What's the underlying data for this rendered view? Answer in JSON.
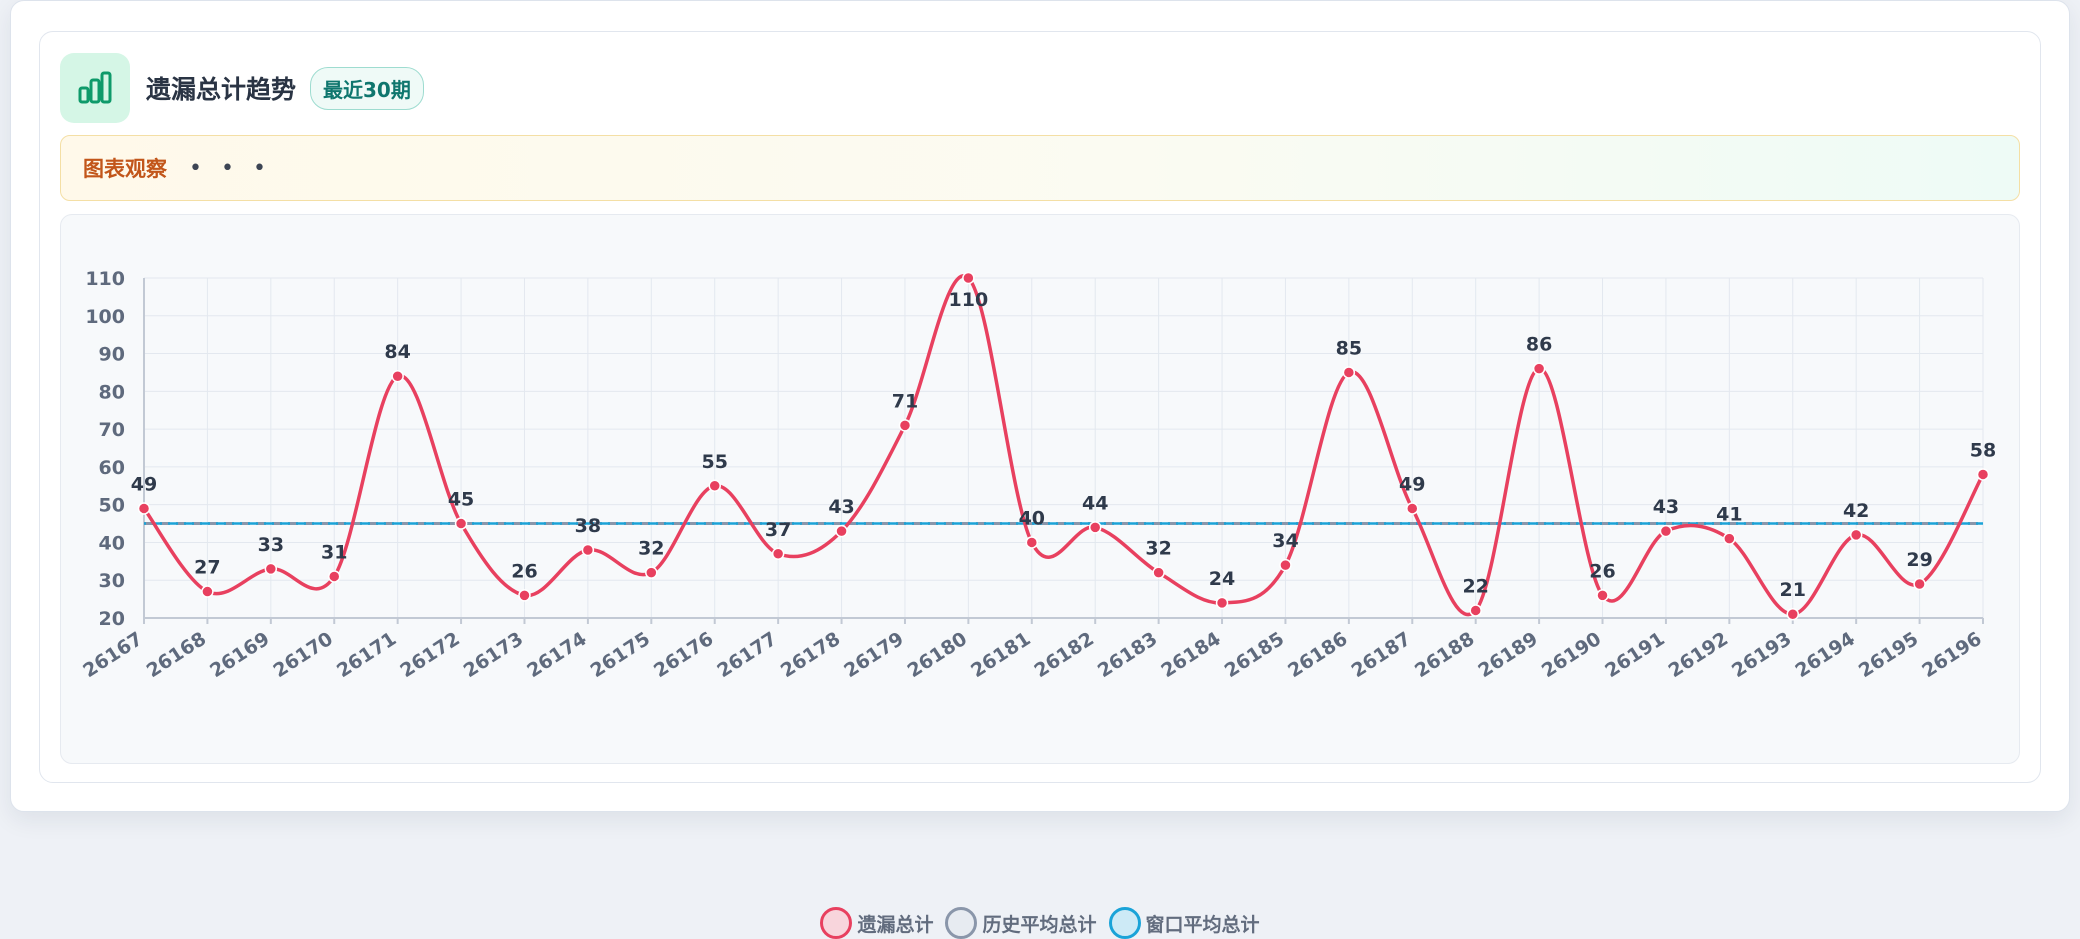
{
  "header": {
    "title": "遗漏总计趋势",
    "badge": "最近30期",
    "icon": "bar-chart-icon"
  },
  "notice": {
    "label": "图表观察",
    "more": "• • •"
  },
  "colors": {
    "series": "#e8405f",
    "avg": "#8a96aa",
    "window": "#1aa3d8"
  },
  "chart_data": {
    "type": "line",
    "x": [
      "26167",
      "26168",
      "26169",
      "26170",
      "26171",
      "26172",
      "26173",
      "26174",
      "26175",
      "26176",
      "26177",
      "26178",
      "26179",
      "26180",
      "26181",
      "26182",
      "26183",
      "26184",
      "26185",
      "26186",
      "26187",
      "26188",
      "26189",
      "26190",
      "26191",
      "26192",
      "26193",
      "26194",
      "26195",
      "26196"
    ],
    "series": [
      {
        "name": "遗漏总计",
        "values": [
          49,
          27,
          33,
          31,
          84,
          45,
          26,
          38,
          32,
          55,
          37,
          43,
          71,
          110,
          40,
          44,
          32,
          24,
          34,
          85,
          49,
          22,
          86,
          26,
          43,
          41,
          21,
          42,
          29,
          58
        ]
      },
      {
        "name": "历史平均总计",
        "values": [
          45,
          45,
          45,
          45,
          45,
          45,
          45,
          45,
          45,
          45,
          45,
          45,
          45,
          45,
          45,
          45,
          45,
          45,
          45,
          45,
          45,
          45,
          45,
          45,
          45,
          45,
          45,
          45,
          45,
          45
        ]
      },
      {
        "name": "窗口平均总计",
        "values": [
          45,
          45,
          45,
          45,
          45,
          45,
          45,
          45,
          45,
          45,
          45,
          45,
          45,
          45,
          45,
          45,
          45,
          45,
          45,
          45,
          45,
          45,
          45,
          45,
          45,
          45,
          45,
          45,
          45,
          45
        ]
      }
    ],
    "yticks": [
      "20",
      "30",
      "40",
      "50",
      "60",
      "70",
      "80",
      "90",
      "100",
      "110"
    ],
    "ylim": [
      20,
      110
    ],
    "grid": true,
    "legend": "bottom"
  }
}
